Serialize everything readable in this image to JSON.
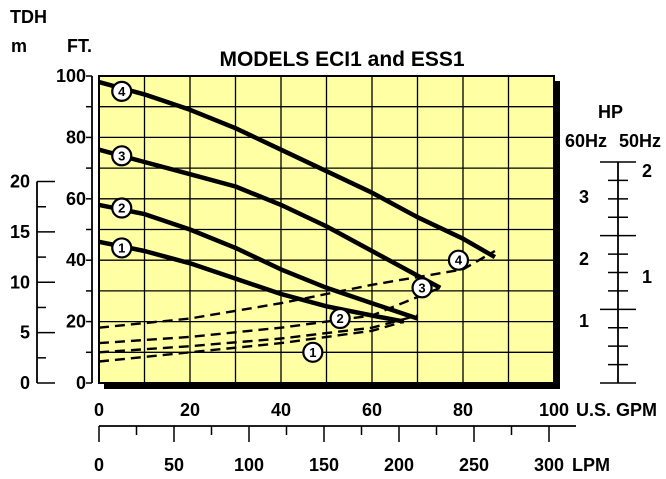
{
  "chart_data": {
    "type": "line",
    "title": "MODELS ECI1 and ESS1",
    "x_units": {
      "gpm": "U.S. GPM",
      "lpm": "LPM"
    },
    "y_units": {
      "feet_header": "TDH",
      "feet": "FT.",
      "meters": "m"
    },
    "hp_axis": {
      "header": "HP",
      "col_60": "60Hz",
      "col_50": "50Hz",
      "ticks_60": [
        "1",
        "2",
        "3"
      ],
      "ticks_50": [
        "1",
        "2"
      ]
    },
    "xlim": [
      0,
      100
    ],
    "ylim": [
      0,
      100
    ],
    "grid": true,
    "x_ticks": [
      "0",
      "20",
      "40",
      "60",
      "80",
      "100"
    ],
    "y_ticks_ft": [
      "0",
      "20",
      "40",
      "60",
      "80",
      "100"
    ],
    "y_ticks_m": [
      "0",
      "5",
      "10",
      "15",
      "20"
    ],
    "lpm_ticks": [
      "0",
      "50",
      "100",
      "150",
      "200",
      "250",
      "300"
    ],
    "head_curves": [
      {
        "marker": "1",
        "x": [
          0,
          10,
          20,
          30,
          40,
          50,
          60,
          67
        ],
        "y": [
          46,
          43,
          39,
          34,
          29,
          25,
          22,
          20
        ]
      },
      {
        "marker": "2",
        "x": [
          0,
          10,
          20,
          30,
          40,
          50,
          60,
          70
        ],
        "y": [
          58,
          55,
          50,
          44,
          37,
          31,
          26,
          21
        ]
      },
      {
        "marker": "3",
        "x": [
          0,
          10,
          20,
          30,
          40,
          50,
          60,
          70,
          75
        ],
        "y": [
          76,
          72,
          68,
          64,
          58,
          51,
          43,
          35,
          31
        ]
      },
      {
        "marker": "4",
        "x": [
          0,
          10,
          20,
          30,
          40,
          50,
          60,
          70,
          80,
          87
        ],
        "y": [
          98,
          94,
          89,
          83,
          76,
          69,
          62,
          54,
          47,
          41
        ]
      }
    ],
    "power_curves": [
      {
        "marker": "1",
        "x": [
          0,
          20,
          40,
          60,
          67
        ],
        "y": [
          7,
          10,
          13,
          17,
          20
        ]
      },
      {
        "marker": "2",
        "x": [
          0,
          20,
          40,
          60,
          70
        ],
        "y": [
          10,
          12,
          14.5,
          18,
          22
        ]
      },
      {
        "marker": "3",
        "x": [
          0,
          20,
          40,
          60,
          75
        ],
        "y": [
          13,
          15,
          18,
          22,
          31
        ]
      },
      {
        "marker": "4",
        "x": [
          0,
          20,
          40,
          60,
          80,
          87
        ],
        "y": [
          18,
          21,
          26,
          32,
          37,
          43
        ]
      }
    ],
    "head_markers": [
      {
        "label": "1",
        "x": 5,
        "y": 44
      },
      {
        "label": "2",
        "x": 5,
        "y": 57
      },
      {
        "label": "3",
        "x": 5,
        "y": 74
      },
      {
        "label": "4",
        "x": 5,
        "y": 95
      }
    ],
    "power_markers": [
      {
        "label": "1",
        "x": 47,
        "y": 10
      },
      {
        "label": "2",
        "x": 53,
        "y": 21
      },
      {
        "label": "3",
        "x": 71,
        "y": 31
      },
      {
        "label": "4",
        "x": 79,
        "y": 40
      }
    ],
    "colors": {
      "plot_bg": "#ffffa4",
      "line": "#000000"
    }
  }
}
